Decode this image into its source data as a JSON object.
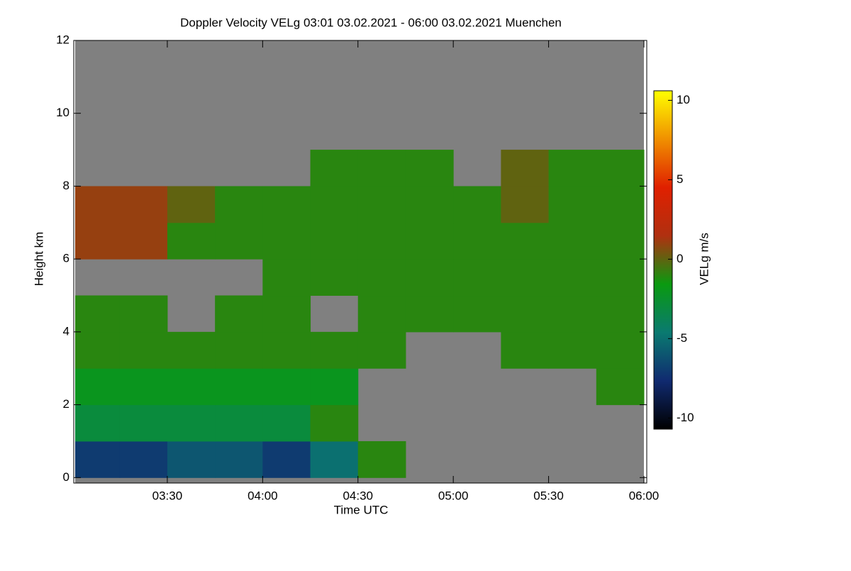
{
  "chart_data": {
    "type": "heatmap",
    "title": "Doppler Velocity VELg   03:01 03.02.2021 - 06:00 03.02.2021 Muenchen",
    "x_label": "Time UTC",
    "y_label": "Height km",
    "colorbar_label": "VELg m/s",
    "x_edges": [
      3.0167,
      3.25,
      3.5,
      3.75,
      4.0,
      4.25,
      4.5,
      4.75,
      5.0,
      5.25,
      5.5,
      5.75,
      6.0
    ],
    "y_edges": [
      0,
      1,
      2,
      3,
      4,
      5,
      6,
      7,
      8,
      9,
      10,
      11,
      12
    ],
    "z": [
      [
        -7,
        -7,
        -6,
        -6,
        -7,
        -5,
        -1,
        null,
        null,
        null,
        null,
        null
      ],
      [
        -3,
        -3,
        -3,
        -3,
        -3,
        -1,
        null,
        null,
        null,
        null,
        null,
        null
      ],
      [
        -2,
        -2,
        -2,
        -2,
        -2,
        -2,
        null,
        null,
        null,
        null,
        null,
        -1
      ],
      [
        -1,
        -1,
        -1,
        -1,
        -1,
        -1,
        -1,
        null,
        null,
        -1,
        -1,
        -1
      ],
      [
        -1,
        -1,
        null,
        -1,
        -1,
        null,
        -1,
        -1,
        -1,
        -1,
        -1,
        -1
      ],
      [
        null,
        null,
        null,
        null,
        -1,
        -1,
        -1,
        -1,
        -1,
        -1,
        -1,
        -1
      ],
      [
        1,
        1,
        -1,
        -1,
        -1,
        -1,
        -1,
        -1,
        -1,
        -1,
        -1,
        -1
      ],
      [
        1,
        1,
        0,
        -1,
        -1,
        -1,
        -1,
        -1,
        -1,
        0,
        -1,
        -1
      ],
      [
        null,
        null,
        null,
        null,
        null,
        -1,
        -1,
        -1,
        null,
        0,
        -1,
        -1
      ],
      [
        null,
        null,
        null,
        null,
        null,
        null,
        null,
        null,
        null,
        null,
        null,
        null
      ],
      [
        null,
        null,
        null,
        null,
        null,
        null,
        null,
        null,
        null,
        null,
        null,
        null
      ],
      [
        null,
        null,
        null,
        null,
        null,
        null,
        null,
        null,
        null,
        null,
        null,
        null
      ]
    ],
    "xlim": [
      3.0167,
      6.0
    ],
    "ylim": [
      -0.15,
      12
    ],
    "xticks": [
      {
        "value": 3.5,
        "label": "03:30"
      },
      {
        "value": 4.0,
        "label": "04:00"
      },
      {
        "value": 4.5,
        "label": "04:30"
      },
      {
        "value": 5.0,
        "label": "05:00"
      },
      {
        "value": 5.5,
        "label": "05:30"
      },
      {
        "value": 6.0,
        "label": "06:00"
      }
    ],
    "yticks": [
      0,
      2,
      4,
      6,
      8,
      10,
      12
    ],
    "clim": [
      -10.7,
      10.6
    ],
    "cticks": [
      10,
      5,
      0,
      -5,
      -10
    ],
    "colorscale": [
      "#000000",
      "#102a70",
      "#0a7a70",
      "#0a9a10",
      "#b03010",
      "#e02000",
      "#f09000",
      "#ffff00"
    ],
    "null_color": "#808080"
  }
}
